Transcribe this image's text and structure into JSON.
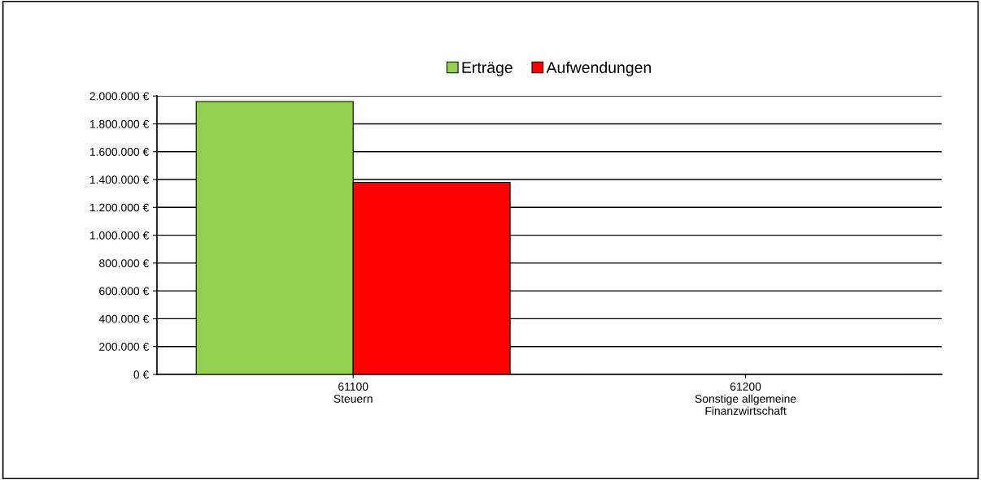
{
  "chart_data": {
    "type": "bar",
    "categories": [
      "61100\nSteuern",
      "61200\nSonstige allgemeine\nFinanzwirtschaft"
    ],
    "series": [
      {
        "name": "Erträge",
        "color": "#92d050",
        "values": [
          1960000,
          0
        ]
      },
      {
        "name": "Aufwendungen",
        "color": "#ff0000",
        "values": [
          1380000,
          0
        ]
      }
    ],
    "ylim": [
      0,
      2000000
    ],
    "yticks": [
      {
        "value": 0,
        "label": "0 €"
      },
      {
        "value": 200000,
        "label": "200.000 €"
      },
      {
        "value": 400000,
        "label": "400.000 €"
      },
      {
        "value": 600000,
        "label": "600.000 €"
      },
      {
        "value": 800000,
        "label": "800.000 €"
      },
      {
        "value": 1000000,
        "label": "1.000.000 €"
      },
      {
        "value": 1200000,
        "label": "1.200.000 €"
      },
      {
        "value": 1400000,
        "label": "1.400.000 €"
      },
      {
        "value": 1600000,
        "label": "1.600.000 €"
      },
      {
        "value": 1800000,
        "label": "1.800.000 €"
      },
      {
        "value": 2000000,
        "label": "2.000.000 €"
      }
    ],
    "grid": "y",
    "legend": "top"
  }
}
